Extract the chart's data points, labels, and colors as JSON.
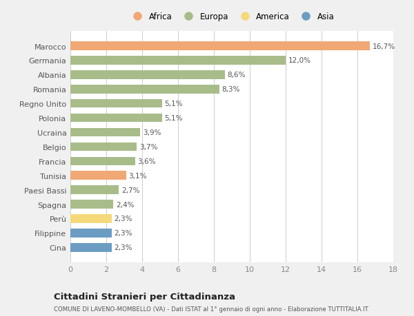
{
  "categories": [
    "Marocco",
    "Germania",
    "Albania",
    "Romania",
    "Regno Unito",
    "Polonia",
    "Ucraina",
    "Belgio",
    "Francia",
    "Tunisia",
    "Paesi Bassi",
    "Spagna",
    "Perù",
    "Filippine",
    "Cina"
  ],
  "values": [
    16.7,
    12.0,
    8.6,
    8.3,
    5.1,
    5.1,
    3.9,
    3.7,
    3.6,
    3.1,
    2.7,
    2.4,
    2.3,
    2.3,
    2.3
  ],
  "labels": [
    "16,7%",
    "12,0%",
    "8,6%",
    "8,3%",
    "5,1%",
    "5,1%",
    "3,9%",
    "3,7%",
    "3,6%",
    "3,1%",
    "2,7%",
    "2,4%",
    "2,3%",
    "2,3%",
    "2,3%"
  ],
  "colors": [
    "#f0a875",
    "#a8bc8a",
    "#a8bc8a",
    "#a8bc8a",
    "#a8bc8a",
    "#a8bc8a",
    "#a8bc8a",
    "#a8bc8a",
    "#a8bc8a",
    "#f0a875",
    "#a8bc8a",
    "#a8bc8a",
    "#f5d97a",
    "#6b9dc2",
    "#6b9dc2"
  ],
  "legend_labels": [
    "Africa",
    "Europa",
    "America",
    "Asia"
  ],
  "legend_colors": [
    "#f0a875",
    "#a8bc8a",
    "#f5d97a",
    "#6b9dc2"
  ],
  "title": "Cittadini Stranieri per Cittadinanza",
  "subtitle": "COMUNE DI LAVENO-MOMBELLO (VA) - Dati ISTAT al 1° gennaio di ogni anno - Elaborazione TUTTITALIA.IT",
  "xlim": [
    0,
    18
  ],
  "xticks": [
    0,
    2,
    4,
    6,
    8,
    10,
    12,
    14,
    16,
    18
  ],
  "bg_color": "#f0f0f0",
  "plot_bg_color": "#ffffff"
}
